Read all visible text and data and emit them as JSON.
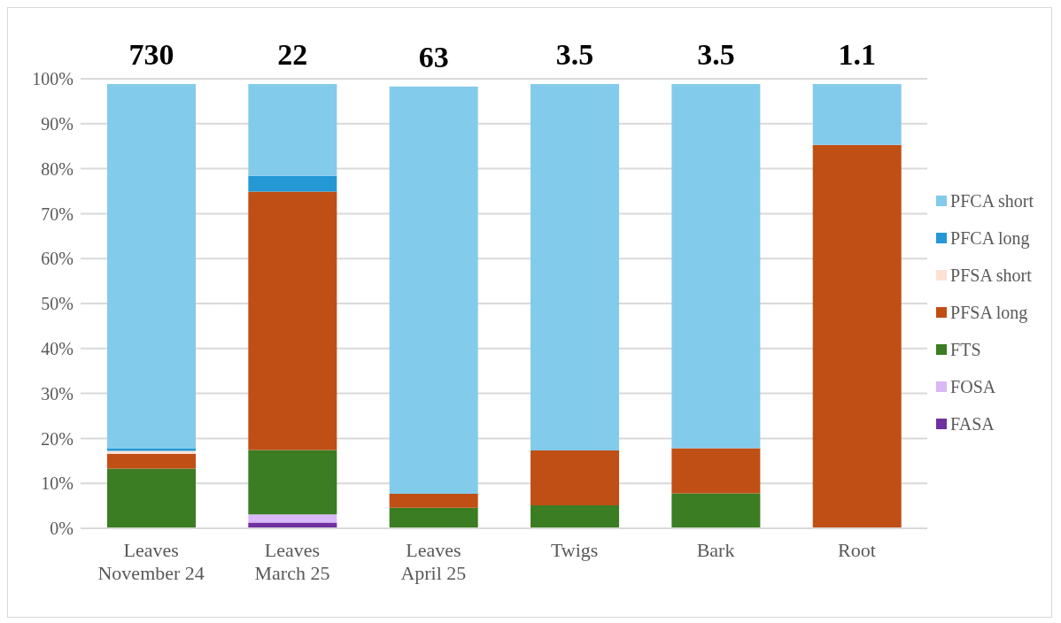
{
  "chart_data": {
    "type": "bar",
    "stacked": true,
    "categories": [
      "Leaves November 24",
      "Leaves March 25",
      "Leaves April 25",
      "Twigs",
      "Bark",
      "Root"
    ],
    "series": [
      {
        "name": "FASA",
        "color": "#7030a0",
        "values": [
          0,
          1.3,
          0,
          0,
          0,
          0
        ]
      },
      {
        "name": "FOSA",
        "color": "#d9b8f7",
        "values": [
          0,
          1.8,
          0,
          0,
          0,
          0
        ]
      },
      {
        "name": "FTS",
        "color": "#3b7d23",
        "values": [
          13.3,
          14.3,
          4.6,
          5.1,
          7.8,
          0
        ]
      },
      {
        "name": "PFSA long",
        "color": "#c04f15",
        "values": [
          3.3,
          57.5,
          3.1,
          12.2,
          10.0,
          85.3
        ]
      },
      {
        "name": "PFSA short",
        "color": "#fbe2d5",
        "values": [
          0.6,
          0,
          null,
          0,
          0,
          0
        ]
      },
      {
        "name": "PFCA long",
        "color": "#2398d5",
        "values": [
          0.5,
          3.5,
          null,
          0,
          0,
          0
        ]
      },
      {
        "name": "PFCA short",
        "color": "#83cbeb",
        "values": [
          81.1,
          20.4,
          90.6,
          81.5,
          81.0,
          13.5
        ]
      }
    ],
    "ylim": [
      0,
      100
    ],
    "yticks": [
      {
        "value": 0,
        "label": "0%"
      },
      {
        "value": 10,
        "label": "10%"
      },
      {
        "value": 20,
        "label": "20%"
      },
      {
        "value": 30,
        "label": "30%"
      },
      {
        "value": 40,
        "label": "40%"
      },
      {
        "value": 50,
        "label": "50%"
      },
      {
        "value": 60,
        "label": "60%"
      },
      {
        "value": 70,
        "label": "70%"
      },
      {
        "value": 80,
        "label": "80%"
      },
      {
        "value": 90,
        "label": "90%"
      },
      {
        "value": 100,
        "label": "100%"
      }
    ],
    "grid": "y",
    "legend": "right",
    "annotations": [
      "730",
      "22",
      "63",
      "3.5",
      "3.5",
      "1.1"
    ]
  }
}
